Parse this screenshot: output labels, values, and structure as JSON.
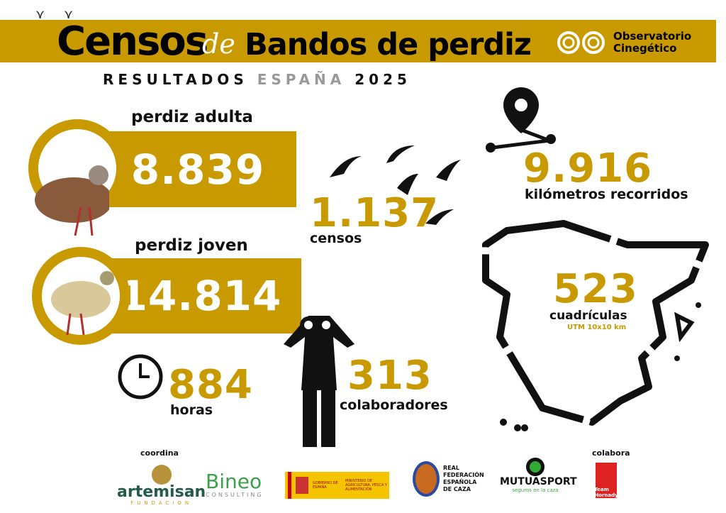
{
  "header": {
    "title_1": "Censos",
    "title_2": "de",
    "title_3": "Bandos de perdiz",
    "subtitle_1": "RESULTADOS",
    "subtitle_2": "ESPAÑA",
    "subtitle_3": "2025",
    "org_logo": {
      "line1": "Observatorio",
      "line2": "Cinegético"
    }
  },
  "stats": {
    "adult": {
      "label": "perdiz adulta",
      "value": "8.839"
    },
    "young": {
      "label": "perdiz joven",
      "value": "14.814"
    },
    "censuses": {
      "value": "1.137",
      "label": "censos"
    },
    "km": {
      "value": "9.916",
      "label": "kilómetros recorridos"
    },
    "hours": {
      "value": "884",
      "label": "horas"
    },
    "collaborators": {
      "value": "313",
      "label": "colaboradores"
    },
    "grids": {
      "value": "523",
      "label": "cuadrículas",
      "unit": "UTM 10x10 km"
    }
  },
  "colors": {
    "accent": "#c99a00"
  },
  "footer": {
    "coordina": "coordina",
    "colabora": "colabora",
    "logos": {
      "artemisan": "artemisan",
      "artemisan_sub": "FUNDACION",
      "bineo": "Bineo",
      "bineo_sub": "CONSULTING",
      "gov_1": "GOBIERNO DE ESPAÑA",
      "gov_2": "MINISTERIO DE AGRICULTURA, PESCA Y ALIMENTACIÓN",
      "rfec": "REAL FEDERACIÓN ESPAÑOLA DE CAZA",
      "mutua": "MUTUASPORT",
      "mutua_sub": "seguros en la caza",
      "hornady": "Team Hornady"
    }
  }
}
